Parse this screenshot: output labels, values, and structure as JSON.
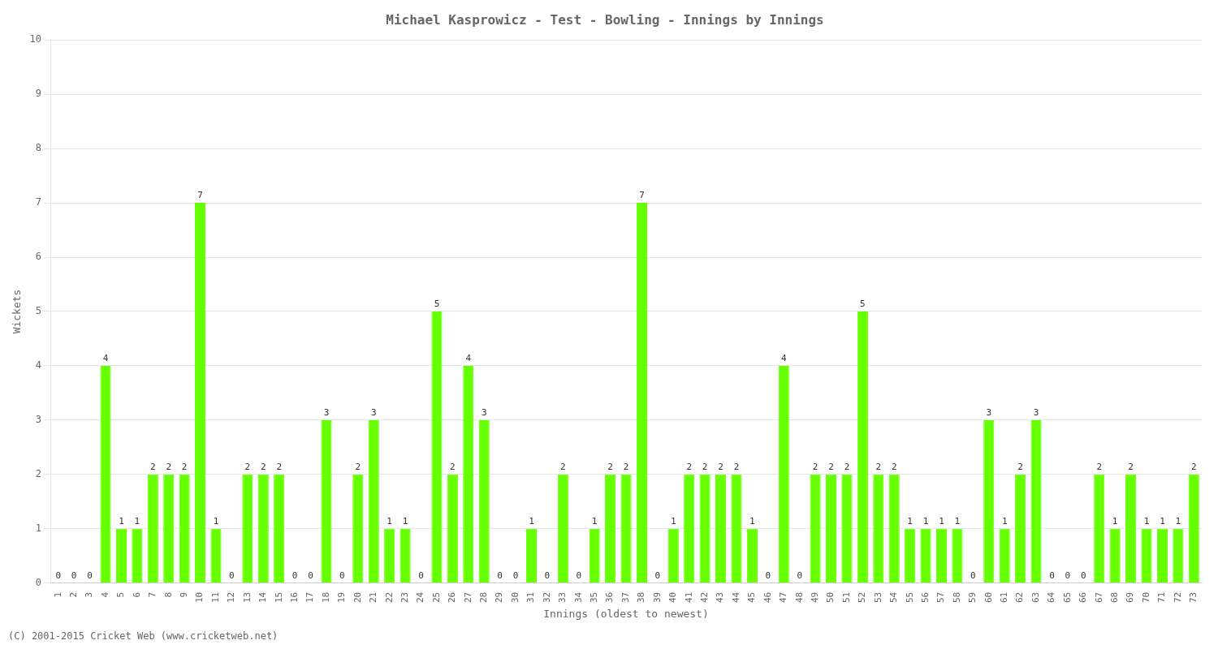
{
  "chart_data": {
    "type": "bar",
    "title": "Michael Kasprowicz - Test - Bowling - Innings by Innings",
    "xlabel": "Innings (oldest to newest)",
    "ylabel": "Wickets",
    "annotations": [
      "(C) 2001-2015 Cricket Web (www.cricketweb.net)"
    ],
    "categories": [
      1,
      2,
      3,
      4,
      5,
      6,
      7,
      8,
      9,
      10,
      11,
      12,
      13,
      14,
      15,
      16,
      17,
      18,
      19,
      20,
      21,
      22,
      23,
      24,
      25,
      26,
      27,
      28,
      29,
      30,
      31,
      32,
      33,
      34,
      35,
      36,
      37,
      38,
      39,
      40,
      41,
      42,
      43,
      44,
      45,
      46,
      47,
      48,
      49,
      50,
      51,
      52,
      53,
      54,
      55,
      56,
      57,
      58,
      59,
      60,
      61,
      62,
      63,
      64,
      65,
      66,
      67,
      68,
      69,
      70,
      71,
      72,
      73
    ],
    "values": [
      0,
      0,
      0,
      4,
      1,
      1,
      2,
      2,
      2,
      7,
      1,
      0,
      2,
      2,
      2,
      0,
      0,
      3,
      0,
      2,
      3,
      1,
      1,
      0,
      5,
      2,
      4,
      3,
      0,
      0,
      1,
      0,
      2,
      0,
      1,
      2,
      2,
      7,
      0,
      1,
      2,
      2,
      2,
      2,
      1,
      0,
      4,
      0,
      2,
      2,
      2,
      5,
      2,
      2,
      1,
      1,
      1,
      1,
      0,
      3,
      1,
      2,
      3,
      0,
      0,
      0,
      2,
      1,
      2,
      1,
      1,
      1,
      2
    ],
    "color": "#66ff00",
    "ylim": [
      0,
      10
    ],
    "yticks": [
      0,
      1,
      2,
      3,
      4,
      5,
      6,
      7,
      8,
      9,
      10
    ],
    "grid": true,
    "data_labels": true
  }
}
